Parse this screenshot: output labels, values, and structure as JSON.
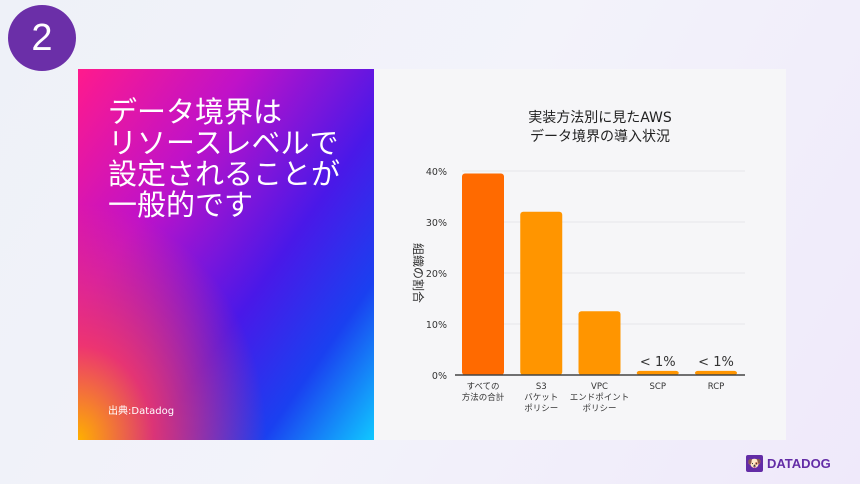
{
  "slide_number": "2",
  "headline": "データ境界は\nリソースレベルで\n設定されることが\n一般的です",
  "source": "出典:Datadog",
  "brand": "DATADOG",
  "chart_data": {
    "type": "bar",
    "title_lines": [
      "実装方法別に見たAWS",
      "データ境界の導入状況"
    ],
    "ylabel": "組織の割合",
    "categories": [
      [
        "すべての",
        "方法の合計"
      ],
      [
        "S3",
        "バケット",
        "ポリシー"
      ],
      [
        "VPC",
        "エンドポイント",
        "ポリシー"
      ],
      [
        "SCP"
      ],
      [
        "RCP"
      ]
    ],
    "values": [
      39.5,
      32,
      12.5,
      0.8,
      0.8
    ],
    "data_labels": [
      "",
      "",
      "",
      "< 1%",
      "< 1%"
    ],
    "colors": [
      "#ff6a00",
      "#ff9500",
      "#ff9500",
      "#ff9500",
      "#ff9500"
    ],
    "yticks": [
      "0%",
      "10%",
      "20%",
      "30%",
      "40%"
    ],
    "ylim": [
      0,
      40
    ],
    "grid": true
  }
}
